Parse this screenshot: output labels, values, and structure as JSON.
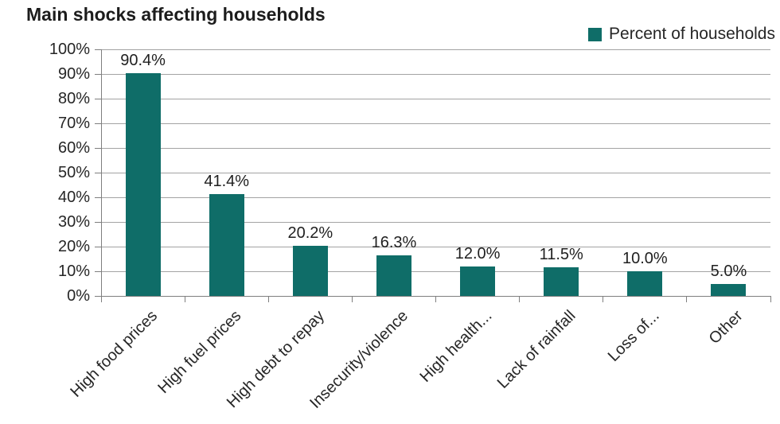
{
  "chart_data": {
    "type": "bar",
    "title": "Main shocks affecting households",
    "categories": [
      "High food prices",
      "High fuel prices",
      "High debt to repay",
      "Insecurity/violence",
      "High health...",
      "Lack of rainfall",
      "Loss of...",
      "Other"
    ],
    "values": [
      90.4,
      41.4,
      20.2,
      16.3,
      12.0,
      11.5,
      10.0,
      5.0
    ],
    "data_labels": [
      "90.4%",
      "41.4%",
      "20.2%",
      "16.3%",
      "12.0%",
      "11.5%",
      "10.0%",
      "5.0%"
    ],
    "legend": [
      "Percent of households"
    ],
    "legend_position": "top-right",
    "xlabel": "",
    "ylabel": "",
    "ylim": [
      0,
      100
    ],
    "ytick_step": 10,
    "ytick_labels": [
      "0%",
      "10%",
      "20%",
      "30%",
      "40%",
      "50%",
      "60%",
      "70%",
      "80%",
      "90%",
      "100%"
    ],
    "grid": true,
    "bar_color": "#0f6d68"
  },
  "colors": {
    "bar": "#0f6d68",
    "gridline": "#a3a3a3",
    "axis": "#7f7f7f",
    "title_text": "#1c1c1c",
    "label_text": "#262626"
  }
}
